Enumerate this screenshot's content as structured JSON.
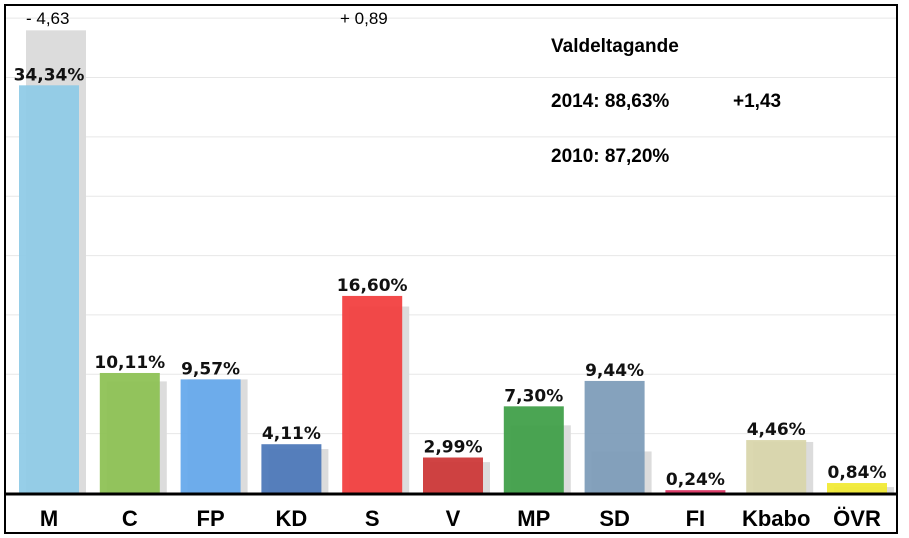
{
  "chart_data": {
    "type": "bar",
    "categories": [
      "M",
      "C",
      "FP",
      "KD",
      "S",
      "V",
      "MP",
      "SD",
      "FI",
      "Kbabo",
      "ÖVR"
    ],
    "series": [
      {
        "values": [
          34.34,
          10.11,
          9.57,
          4.11,
          16.6,
          2.99,
          7.3,
          9.44,
          0.24,
          4.46,
          0.84
        ],
        "labels": [
          "34,34%",
          "10,11%",
          "9,57%",
          "4,11%",
          "16,60%",
          "2,99%",
          "7,30%",
          "9,44%",
          "0,24%",
          "4,46%",
          "0,84%"
        ],
        "colors": [
          "#8ecae6",
          "#8cc152",
          "#64a8ec",
          "#4a76b8",
          "#f23c3c",
          "#cc3535",
          "#3d9e46",
          "#7c9bb8",
          "#d93060",
          "#d8d5aa",
          "#f1ea32"
        ]
      },
      {
        "values": [
          38.97,
          9.4,
          9.57,
          3.7,
          15.71,
          2.6,
          5.7,
          3.5,
          0.0,
          4.3,
          0.5
        ]
      }
    ],
    "ylim": [
      0,
      39
    ],
    "grid": true,
    "annotations": [
      "- 4,63",
      "+ 0,89"
    ]
  },
  "turnout": {
    "title": "Valdeltagande",
    "line_2014": "2014: 88,63%",
    "change": "+1,43",
    "line_2010": "2010: 87,20%"
  }
}
